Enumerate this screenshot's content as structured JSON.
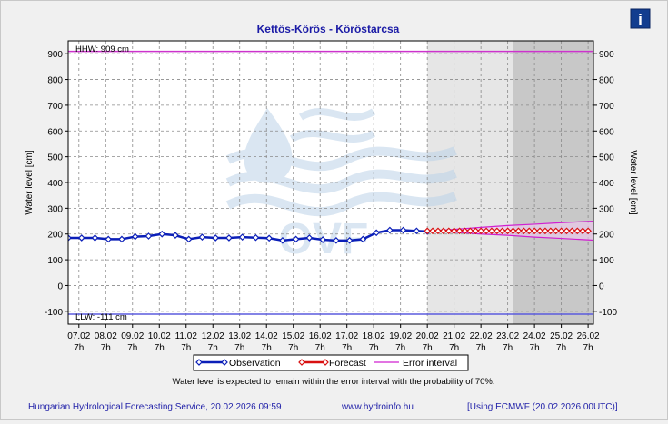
{
  "title": "Kettős-Körös - Köröstarcsa",
  "info_icon_label": "i",
  "chart_data": {
    "type": "line",
    "ylabel_left": "Water level [cm]",
    "ylabel_right": "Water level [cm]",
    "ylim": [
      -150,
      950
    ],
    "yticks": [
      -100,
      0,
      100,
      200,
      300,
      400,
      500,
      600,
      700,
      800,
      900
    ],
    "grid": true,
    "x_dates": [
      "07.02",
      "08.02",
      "09.02",
      "10.02",
      "11.02",
      "12.02",
      "13.02",
      "14.02",
      "15.02",
      "16.02",
      "17.02",
      "18.02",
      "19.02",
      "20.02",
      "21.02",
      "22.02",
      "23.02",
      "24.02",
      "25.02",
      "26.02"
    ],
    "x_hour": "7h",
    "x_range_days": [
      6.6,
      26.2
    ],
    "forecast_start_day": 20.0,
    "darker_shade_start_day": 23.2,
    "hhw": {
      "label": "HHW: 909 cm",
      "value": 909
    },
    "llw": {
      "label": "LLW: -111 cm",
      "value": -111
    },
    "observation": {
      "name": "Observation",
      "x": [
        6.6,
        7.1,
        7.6,
        8.1,
        8.6,
        9.1,
        9.6,
        10.1,
        10.6,
        11.1,
        11.6,
        12.1,
        12.6,
        13.1,
        13.6,
        14.1,
        14.6,
        15.1,
        15.6,
        16.1,
        16.6,
        17.1,
        17.6,
        18.1,
        18.6,
        19.1,
        19.6,
        20.0
      ],
      "y": [
        185,
        185,
        185,
        180,
        180,
        190,
        192,
        200,
        195,
        180,
        188,
        185,
        185,
        188,
        186,
        184,
        175,
        180,
        185,
        178,
        175,
        175,
        180,
        205,
        215,
        215,
        212,
        210
      ]
    },
    "forecast": {
      "name": "Forecast",
      "x": [
        20.0,
        20.2,
        20.4,
        20.6,
        20.8,
        21.0,
        21.2,
        21.4,
        21.6,
        21.8,
        22.0,
        22.2,
        22.4,
        22.6,
        22.8,
        23.0,
        23.2,
        23.4,
        23.6,
        23.8,
        24.0,
        24.2,
        24.4,
        24.6,
        24.8,
        25.0,
        25.2,
        25.4,
        25.6,
        25.8,
        26.0
      ],
      "y": [
        212,
        212,
        212,
        212,
        212,
        212,
        212,
        212,
        212,
        212,
        212,
        212,
        212,
        212,
        212,
        212,
        212,
        212,
        212,
        212,
        212,
        212,
        212,
        212,
        212,
        212,
        212,
        212,
        212,
        212,
        212
      ]
    },
    "error_interval": {
      "name": "Error interval",
      "x": [
        20.0,
        21.0,
        22.0,
        23.0,
        24.0,
        25.0,
        26.2
      ],
      "upper": [
        212,
        218,
        226,
        233,
        238,
        244,
        250
      ],
      "lower": [
        212,
        207,
        200,
        195,
        188,
        183,
        176
      ]
    },
    "note": "Water level is expected to remain within the error interval with the probability of 70%."
  },
  "footer": {
    "service": "Hungarian Hydrological Forecasting Service, 20.02.2026 09:59",
    "url": "www.hydroinfo.hu",
    "model": "[Using ECMWF (20.02.2026  00UTC)]"
  },
  "colors": {
    "observation": "#0b1fb8",
    "forecast": "#d81010",
    "error": "#d020d0",
    "threshold": "#cc33cc",
    "llw_line": "#5b5bdd",
    "title": "#1b1ba6"
  }
}
